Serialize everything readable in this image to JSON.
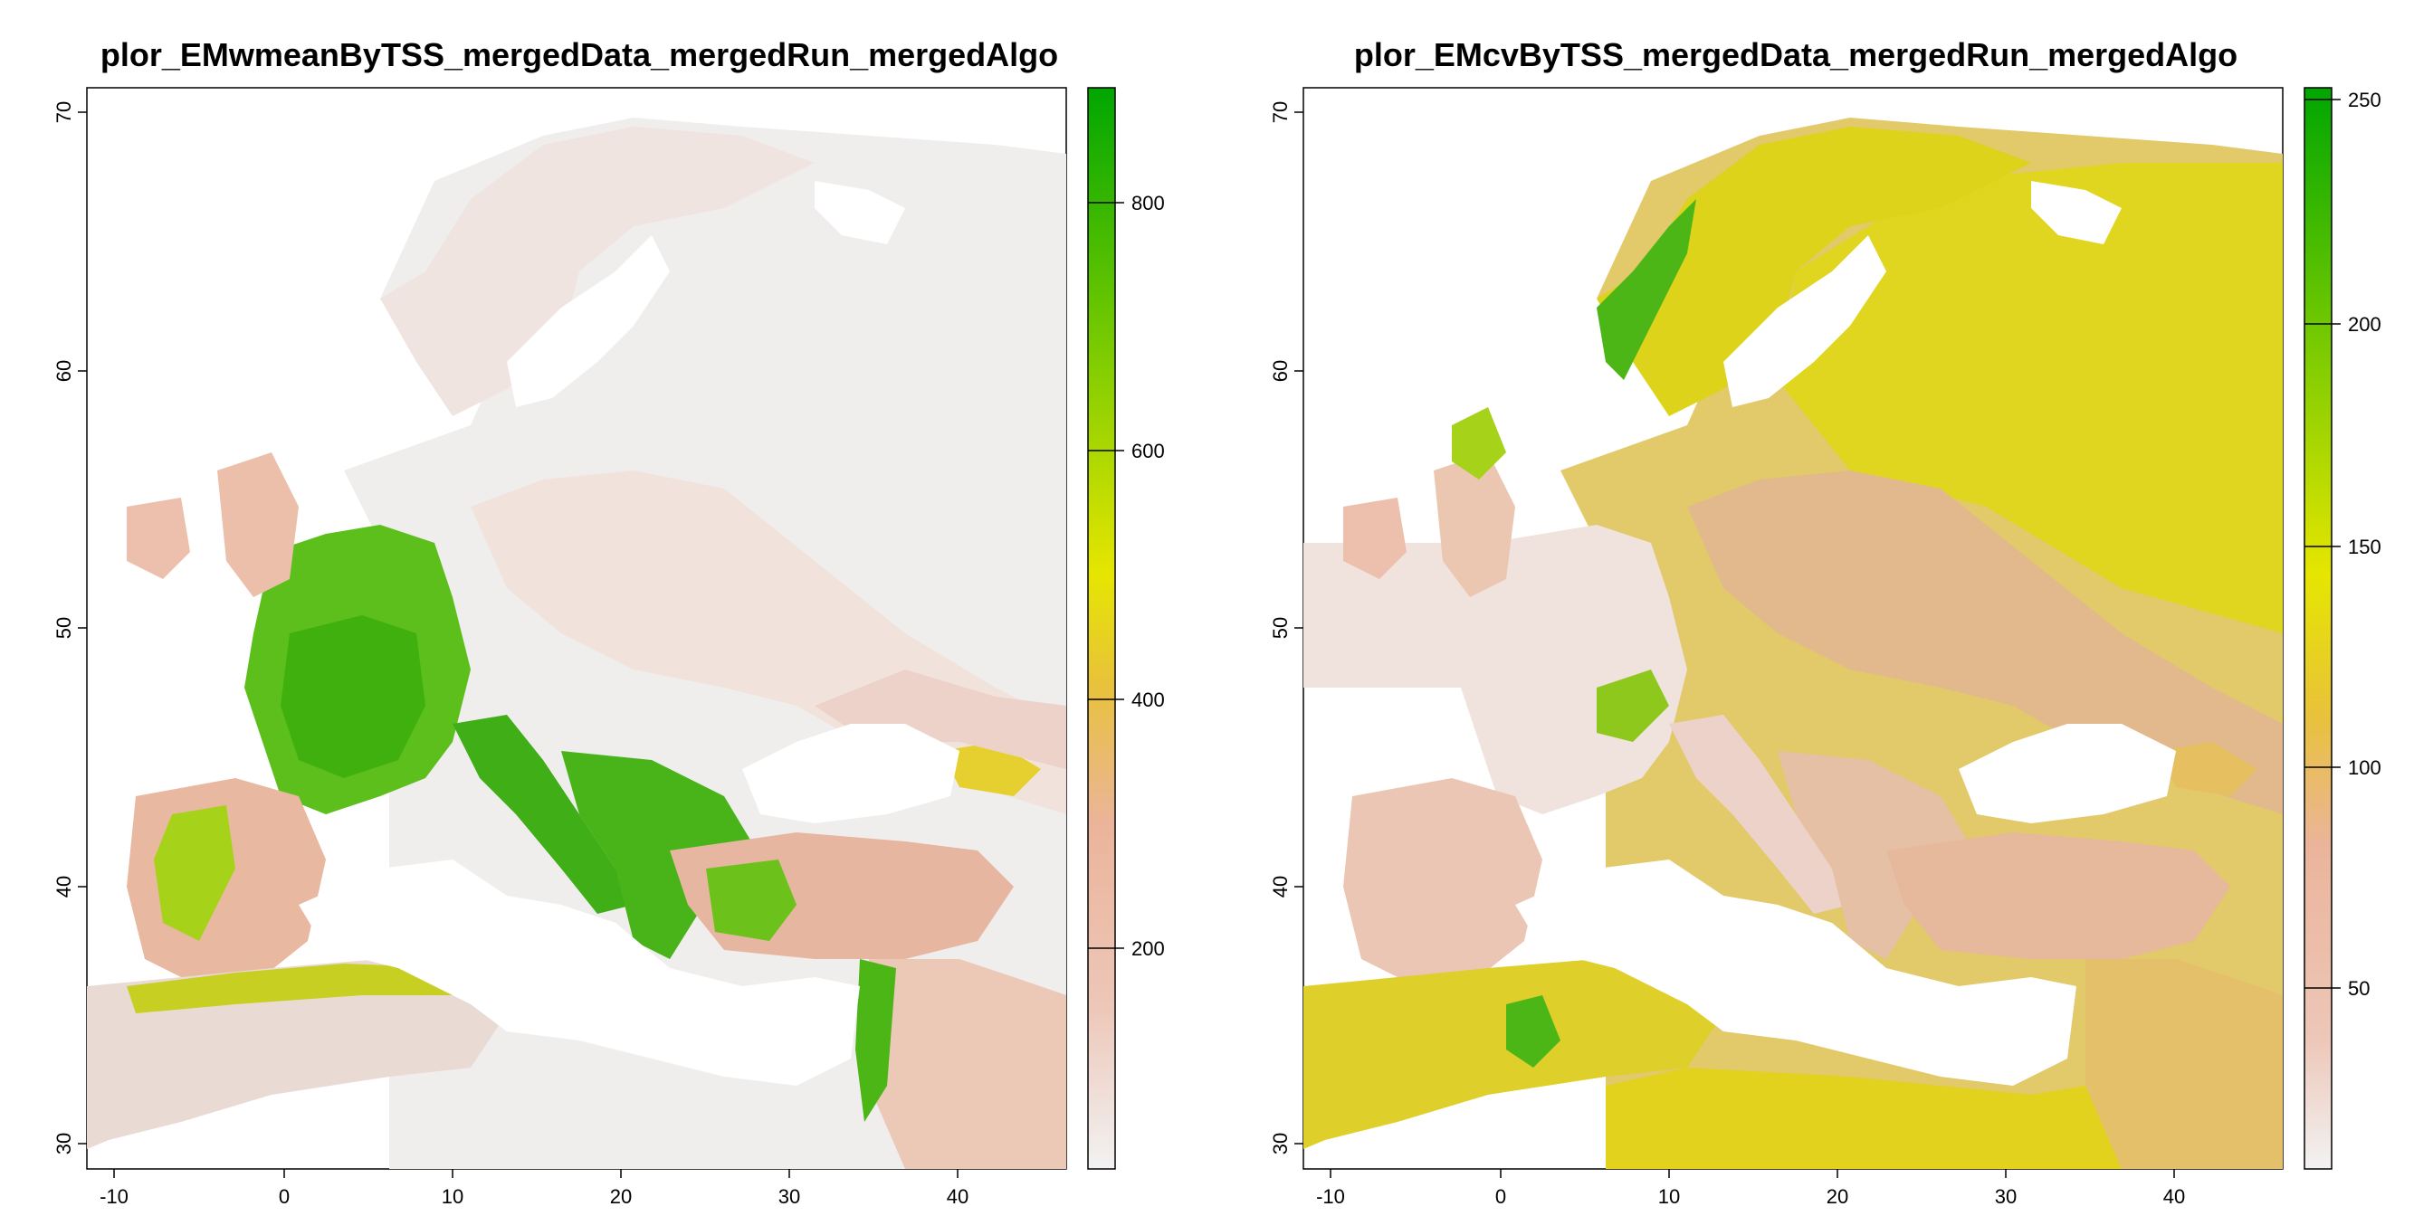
{
  "maps": [
    {
      "title": "plor_EMwmeanByTSS_mergedData_mergedRun_mergedAlgo",
      "x_ticks": [
        -10,
        0,
        10,
        20,
        30,
        40
      ],
      "y_ticks": [
        30,
        40,
        50,
        60,
        70
      ],
      "legend_ticks": [
        200,
        400,
        600,
        800
      ],
      "legend_range": [
        0,
        900
      ],
      "colors": {
        "low": "#f2f2f2",
        "mid_low": "#ebb49a",
        "mid": "#e8c23a",
        "mid_high": "#e6e600",
        "high": "#00a600"
      }
    },
    {
      "title": "plor_EMcvByTSS_mergedData_mergedRun_mergedAlgo",
      "x_ticks": [
        -10,
        0,
        10,
        20,
        30,
        40
      ],
      "y_ticks": [
        30,
        40,
        50,
        60,
        70
      ],
      "legend_ticks": [
        50,
        100,
        150,
        200,
        250
      ],
      "legend_range": [
        10,
        255
      ],
      "colors": {
        "low": "#f2f2f2",
        "mid_low": "#ebb49a",
        "mid": "#e8c23a",
        "mid_high": "#e6e600",
        "high": "#00a600"
      }
    }
  ],
  "map_extent": {
    "lon": [
      -11,
      47
    ],
    "lat": [
      29,
      71
    ]
  }
}
